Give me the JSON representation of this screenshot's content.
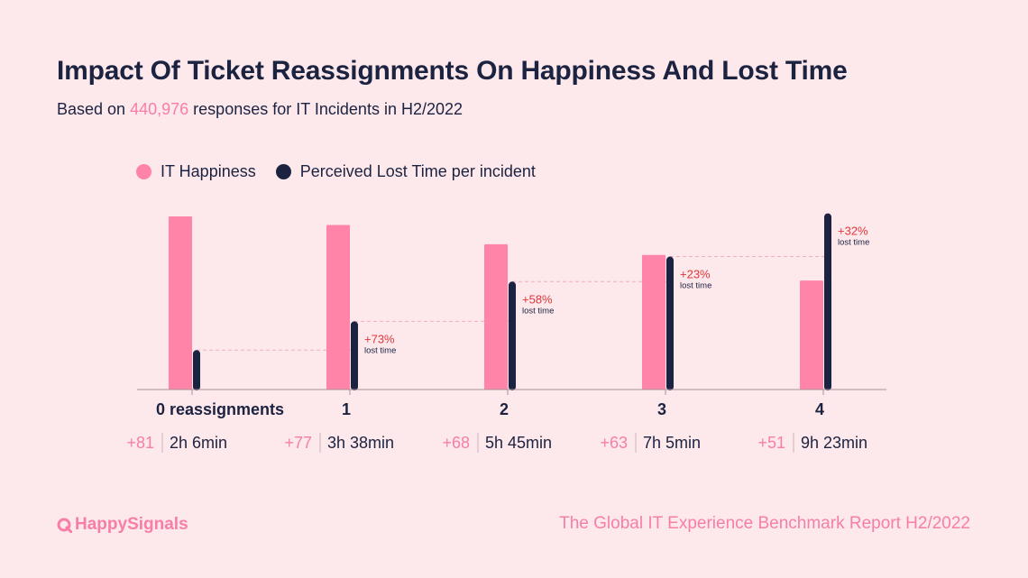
{
  "title": "Impact Of Ticket Reassignments On Happiness And Lost Time",
  "subtitle": {
    "prefix": "Based on",
    "highlight": "440,976",
    "suffix": "responses for IT Incidents in H2/2022"
  },
  "colors": {
    "background": "#fde8ec",
    "happiness": "#ff84a8",
    "lost_time": "#1c2340",
    "accent_text": "#f77fa6",
    "change_text": "#e0383b"
  },
  "chart_data": {
    "type": "bar",
    "title": "Impact Of Ticket Reassignments On Happiness And Lost Time",
    "categories": [
      "0 reassignments",
      "1",
      "2",
      "3",
      "4"
    ],
    "series": [
      {
        "name": "IT Happiness",
        "values": [
          81,
          77,
          68,
          63,
          51
        ],
        "display": [
          "+81",
          "+77",
          "+68",
          "+63",
          "+51"
        ]
      },
      {
        "name": "Perceived Lost Time per incident",
        "values_minutes": [
          126,
          218,
          345,
          425,
          563
        ],
        "display": [
          "2h 6min",
          "3h 38min",
          "5h 45min",
          "7h 5min",
          "9h 23min"
        ]
      }
    ],
    "annotations": [
      {
        "category": "1",
        "change": "+73%",
        "note": "lost time"
      },
      {
        "category": "2",
        "change": "+58%",
        "note": "lost time"
      },
      {
        "category": "3",
        "change": "+23%",
        "note": "lost time"
      },
      {
        "category": "4",
        "change": "+32%",
        "note": "lost time"
      }
    ],
    "legend": "top-left"
  },
  "footer": {
    "brand": "HappySignals",
    "report": "The Global IT Experience Benchmark Report H2/2022"
  }
}
